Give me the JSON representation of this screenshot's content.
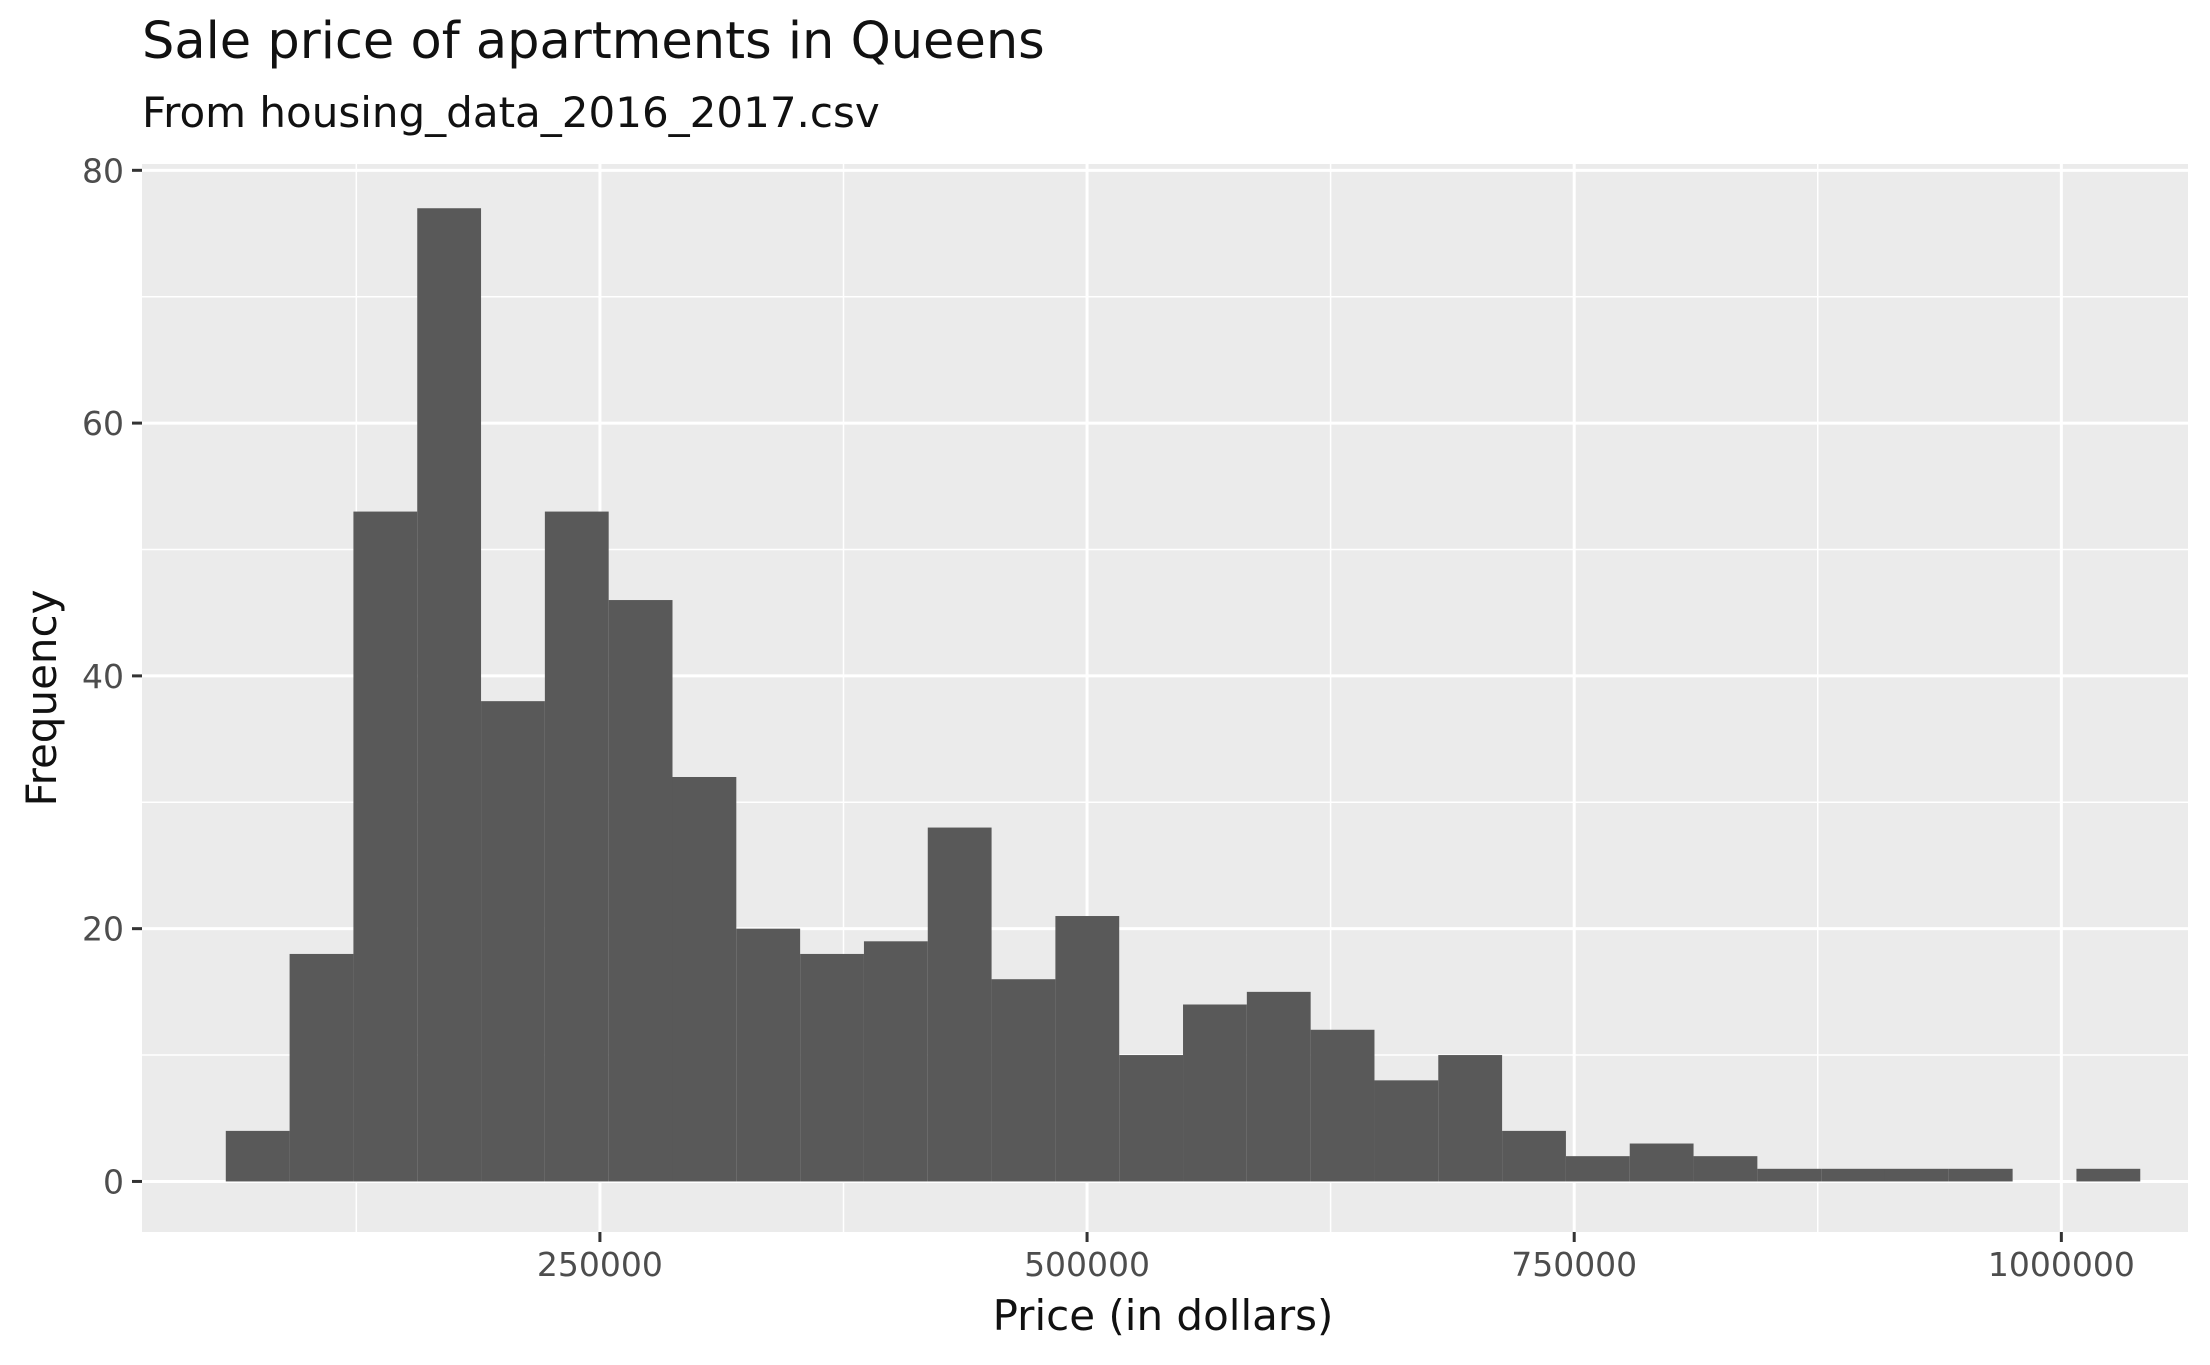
{
  "chart_data": {
    "type": "bar",
    "title": "Sale price of apartments in Queens",
    "subtitle": "From housing_data_2016_2017.csv",
    "xlabel": "Price (in dollars)",
    "ylabel": "Frequency",
    "xlim": [
      15000,
      1065000
    ],
    "ylim": [
      -4,
      80.5
    ],
    "x_ticks": [
      250000,
      500000,
      750000,
      1000000
    ],
    "x_tick_labels": [
      "250000",
      "500000",
      "750000",
      "1000000"
    ],
    "y_ticks": [
      0,
      20,
      40,
      60,
      80
    ],
    "y_tick_labels": [
      "0",
      "20",
      "40",
      "60",
      "80"
    ],
    "grid": true,
    "bin_width": 32750,
    "bins": [
      {
        "x0": 58000,
        "x1": 90750,
        "count": 4
      },
      {
        "x0": 90750,
        "x1": 123500,
        "count": 18
      },
      {
        "x0": 123500,
        "x1": 156250,
        "count": 53
      },
      {
        "x0": 156250,
        "x1": 189000,
        "count": 77
      },
      {
        "x0": 189000,
        "x1": 221750,
        "count": 38
      },
      {
        "x0": 221750,
        "x1": 254500,
        "count": 53
      },
      {
        "x0": 254500,
        "x1": 287250,
        "count": 46
      },
      {
        "x0": 287250,
        "x1": 320000,
        "count": 32
      },
      {
        "x0": 320000,
        "x1": 352750,
        "count": 20
      },
      {
        "x0": 352750,
        "x1": 385500,
        "count": 18
      },
      {
        "x0": 385500,
        "x1": 418250,
        "count": 19
      },
      {
        "x0": 418250,
        "x1": 451000,
        "count": 28
      },
      {
        "x0": 451000,
        "x1": 483750,
        "count": 16
      },
      {
        "x0": 483750,
        "x1": 516500,
        "count": 21
      },
      {
        "x0": 516500,
        "x1": 549250,
        "count": 10
      },
      {
        "x0": 549250,
        "x1": 582000,
        "count": 14
      },
      {
        "x0": 582000,
        "x1": 614750,
        "count": 15
      },
      {
        "x0": 614750,
        "x1": 647500,
        "count": 12
      },
      {
        "x0": 647500,
        "x1": 680250,
        "count": 8
      },
      {
        "x0": 680250,
        "x1": 713000,
        "count": 10
      },
      {
        "x0": 713000,
        "x1": 745750,
        "count": 4
      },
      {
        "x0": 745750,
        "x1": 778500,
        "count": 2
      },
      {
        "x0": 778500,
        "x1": 811250,
        "count": 3
      },
      {
        "x0": 811250,
        "x1": 844000,
        "count": 2
      },
      {
        "x0": 844000,
        "x1": 876750,
        "count": 1
      },
      {
        "x0": 876750,
        "x1": 909500,
        "count": 1
      },
      {
        "x0": 909500,
        "x1": 942250,
        "count": 1
      },
      {
        "x0": 942250,
        "x1": 975000,
        "count": 1
      },
      {
        "x0": 975000,
        "x1": 1007750,
        "count": 0
      },
      {
        "x0": 1007750,
        "x1": 1040500,
        "count": 1
      }
    ],
    "colors": {
      "bar": "#595959",
      "panel": "#ebebeb",
      "grid": "#ffffff",
      "axis_text": "#4d4d4d",
      "tick": "#333333"
    }
  }
}
